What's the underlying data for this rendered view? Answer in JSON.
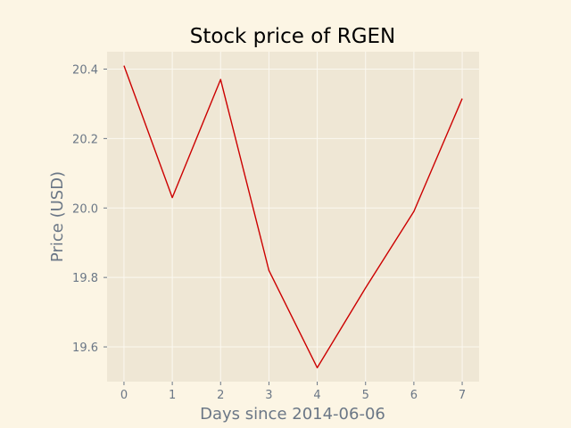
{
  "chart_data": {
    "type": "line",
    "title": "Stock price of RGEN",
    "xlabel": "Days since 2014-06-06",
    "ylabel": "Price (USD)",
    "x": [
      0,
      1,
      2,
      3,
      4,
      5,
      6,
      7
    ],
    "series": [
      {
        "values": [
          20.41,
          20.03,
          20.37,
          19.82,
          19.54,
          19.77,
          19.99,
          20.315
        ]
      }
    ],
    "xlim": [
      -0.35,
      7.35
    ],
    "ylim": [
      19.5,
      20.45
    ],
    "x_ticks": [
      "0",
      "1",
      "2",
      "3",
      "4",
      "5",
      "6",
      "7"
    ],
    "y_ticks": [
      "19.6",
      "19.8",
      "20.0",
      "20.2",
      "20.4"
    ],
    "grid": true,
    "colors": {
      "figure_background": "#fcf5e4",
      "plot_background": "#efe7d5",
      "grid": "#fbf8f0",
      "line": "#cc0000",
      "text": "#6b7786"
    }
  }
}
